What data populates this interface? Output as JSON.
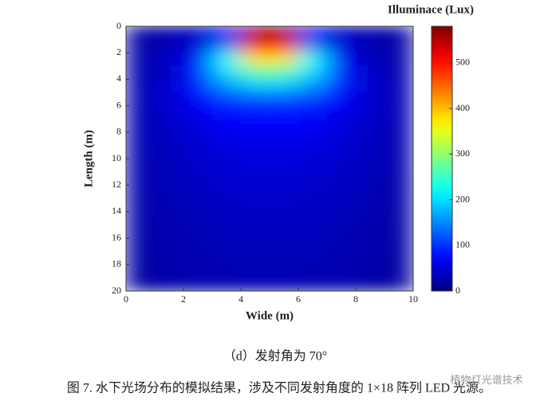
{
  "chart_data": {
    "type": "heatmap",
    "colorbar_title": "Illuminace (Lux)",
    "xlabel": "Wide (m)",
    "ylabel": "Length (m)",
    "x": [
      0.5,
      1.5,
      2.5,
      3.5,
      4.5,
      5.5,
      6.5,
      7.5,
      8.5,
      9.5
    ],
    "y": [
      0.5,
      1.5,
      2.5,
      3.5,
      4.5,
      5.5,
      6.5,
      7.5,
      8.5,
      9.5,
      10.5,
      11.5,
      12.5,
      13.5,
      14.5,
      15.5,
      16.5,
      17.5,
      18.5,
      19.5
    ],
    "values": [
      [
        20,
        25,
        40,
        70,
        560,
        560,
        70,
        40,
        25,
        20
      ],
      [
        22,
        30,
        50,
        150,
        480,
        480,
        150,
        50,
        30,
        22
      ],
      [
        25,
        35,
        70,
        220,
        380,
        380,
        220,
        70,
        35,
        25
      ],
      [
        28,
        40,
        90,
        200,
        270,
        270,
        200,
        90,
        40,
        28
      ],
      [
        30,
        45,
        90,
        160,
        190,
        190,
        160,
        90,
        45,
        30
      ],
      [
        30,
        45,
        75,
        110,
        120,
        120,
        110,
        75,
        45,
        30
      ],
      [
        30,
        42,
        62,
        80,
        85,
        85,
        80,
        62,
        42,
        30
      ],
      [
        30,
        40,
        55,
        66,
        70,
        70,
        66,
        55,
        40,
        30
      ],
      [
        29,
        38,
        50,
        58,
        62,
        62,
        58,
        50,
        38,
        29
      ],
      [
        28,
        36,
        46,
        53,
        56,
        56,
        53,
        46,
        36,
        28
      ],
      [
        27,
        34,
        42,
        48,
        51,
        51,
        48,
        42,
        34,
        27
      ],
      [
        26,
        32,
        39,
        45,
        47,
        47,
        45,
        39,
        32,
        26
      ],
      [
        25,
        31,
        37,
        42,
        44,
        44,
        42,
        37,
        31,
        25
      ],
      [
        24,
        30,
        35,
        39,
        41,
        41,
        39,
        35,
        30,
        24
      ],
      [
        23,
        28,
        33,
        36,
        38,
        38,
        36,
        33,
        28,
        23
      ],
      [
        22,
        27,
        31,
        34,
        36,
        36,
        34,
        31,
        27,
        22
      ],
      [
        22,
        26,
        30,
        32,
        34,
        34,
        32,
        30,
        26,
        22
      ],
      [
        21,
        25,
        28,
        31,
        32,
        32,
        31,
        28,
        25,
        21
      ],
      [
        20,
        24,
        27,
        29,
        30,
        30,
        29,
        27,
        24,
        20
      ],
      [
        20,
        23,
        26,
        28,
        29,
        29,
        28,
        26,
        23,
        20
      ]
    ],
    "xlim": [
      0,
      10
    ],
    "xticks": [
      0,
      2,
      4,
      6,
      8,
      10
    ],
    "ylim": [
      0,
      20
    ],
    "yticks": [
      0,
      2,
      4,
      6,
      8,
      10,
      12,
      14,
      16,
      18,
      20
    ],
    "y_inverted": true,
    "zlim": [
      0,
      580
    ],
    "zticks": [
      0,
      100,
      200,
      300,
      400,
      500
    ],
    "colormap": "jet"
  },
  "caption": "（d）发射角为 70°",
  "figure_caption": "图 7. 水下光场分布的模拟结果，涉及不同发射角度的 1×18 阵列 LED 光源。",
  "watermark": "植物灯光谱技术"
}
